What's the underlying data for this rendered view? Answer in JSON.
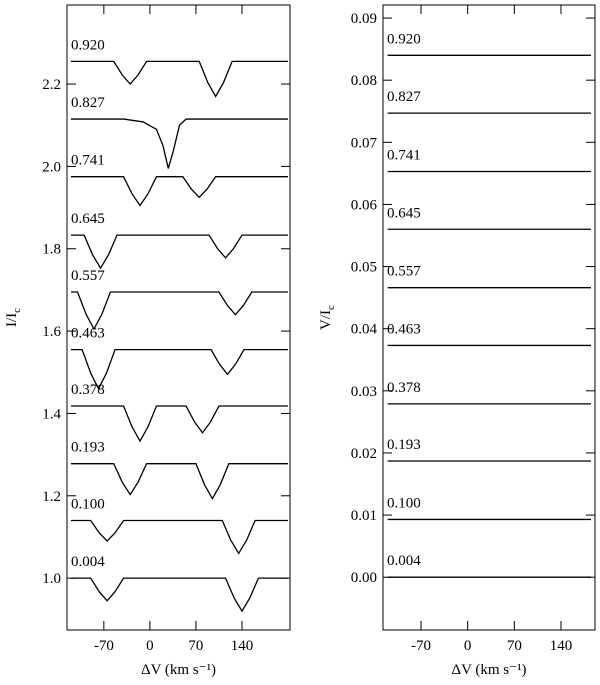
{
  "chart_data": [
    {
      "type": "line",
      "ylabel": {
        "main": "I/I",
        "sub": "c"
      },
      "xlabel": "ΔV (km s⁻¹)",
      "xlim": [
        -126,
        213
      ],
      "ylim": [
        0.874,
        2.392
      ],
      "xticks": [
        -70,
        0,
        70,
        140
      ],
      "yticks": [
        {
          "value": 1,
          "label": "1.0"
        },
        1.2,
        1.4,
        1.6,
        1.8,
        {
          "value": 2,
          "label": "2.0"
        },
        2.2
      ],
      "color": "#000000",
      "series": [
        {
          "name": "0.004",
          "x": [
            -120,
            -90,
            -77,
            -65,
            -53,
            -40,
            115,
            128,
            140,
            152,
            165,
            210
          ],
          "values": [
            1.0,
            1.0,
            0.967,
            0.945,
            0.967,
            1.0,
            1.0,
            0.952,
            0.92,
            0.952,
            1.0,
            1.0
          ]
        },
        {
          "name": "0.100",
          "x": [
            -120,
            -90,
            -77,
            -65,
            -53,
            -40,
            110,
            123,
            135,
            147,
            160,
            210
          ],
          "values": [
            1.14,
            1.14,
            1.11,
            1.09,
            1.11,
            1.14,
            1.14,
            1.092,
            1.06,
            1.092,
            1.14,
            1.14
          ]
        },
        {
          "name": "0.193",
          "x": [
            -120,
            -55,
            -42,
            -30,
            -18,
            -5,
            70,
            83,
            95,
            107,
            120,
            210
          ],
          "values": [
            1.278,
            1.278,
            1.233,
            1.203,
            1.233,
            1.278,
            1.278,
            1.227,
            1.193,
            1.227,
            1.278,
            1.278
          ]
        },
        {
          "name": "0.378",
          "x": [
            -120,
            -40,
            -27,
            -15,
            -3,
            10,
            55,
            68,
            80,
            92,
            105,
            210
          ],
          "values": [
            1.418,
            1.418,
            1.367,
            1.333,
            1.367,
            1.418,
            1.418,
            1.379,
            1.353,
            1.379,
            1.418,
            1.418
          ]
        },
        {
          "name": "0.463",
          "x": [
            -120,
            -103,
            -90,
            -78,
            -66,
            -53,
            93,
            106,
            118,
            130,
            143,
            210
          ],
          "values": [
            1.555,
            1.555,
            1.498,
            1.46,
            1.498,
            1.555,
            1.555,
            1.519,
            1.495,
            1.519,
            1.555,
            1.555
          ]
        },
        {
          "name": "0.557",
          "x": [
            -120,
            -110,
            -97,
            -85,
            -73,
            -60,
            105,
            118,
            130,
            142,
            155,
            210
          ],
          "values": [
            1.695,
            1.695,
            1.641,
            1.605,
            1.641,
            1.695,
            1.695,
            1.662,
            1.64,
            1.662,
            1.695,
            1.695
          ]
        },
        {
          "name": "0.645",
          "x": [
            -120,
            -100,
            -87,
            -75,
            -63,
            -50,
            90,
            103,
            115,
            127,
            140,
            210
          ],
          "values": [
            1.833,
            1.833,
            1.785,
            1.753,
            1.785,
            1.833,
            1.833,
            1.8,
            1.778,
            1.8,
            1.833,
            1.833
          ]
        },
        {
          "name": "0.741",
          "x": [
            -120,
            -40,
            -27,
            -15,
            -3,
            10,
            50,
            63,
            75,
            87,
            100,
            210
          ],
          "values": [
            1.975,
            1.975,
            1.933,
            1.905,
            1.933,
            1.975,
            1.975,
            1.945,
            1.925,
            1.945,
            1.975,
            1.975
          ]
        },
        {
          "name": "0.827",
          "x": [
            -120,
            -40,
            -10,
            10,
            20,
            28,
            36,
            45,
            55,
            210
          ],
          "values": [
            2.115,
            2.115,
            2.108,
            2.09,
            2.05,
            1.995,
            2.04,
            2.1,
            2.115,
            2.115
          ]
        },
        {
          "name": "0.920",
          "x": [
            -120,
            -55,
            -42,
            -30,
            -18,
            -5,
            75,
            88,
            100,
            112,
            125,
            210
          ],
          "values": [
            2.255,
            2.255,
            2.222,
            2.2,
            2.222,
            2.255,
            2.255,
            2.204,
            2.17,
            2.204,
            2.255,
            2.255
          ]
        }
      ]
    },
    {
      "type": "line",
      "ylabel": {
        "main": "V/I",
        "sub": "c"
      },
      "xlabel": "ΔV (km s⁻¹)",
      "xlim": [
        -127,
        191
      ],
      "ylim": [
        -0.0085,
        0.0921
      ],
      "xticks": [
        -70,
        0,
        70,
        140
      ],
      "yticks": [
        {
          "value": 0,
          "label": "0.00"
        },
        0.01,
        0.02,
        0.03,
        0.04,
        0.05,
        0.06,
        0.07,
        0.08,
        0.09
      ],
      "color": "#000000",
      "series": [
        {
          "name": "0.004",
          "x": [
            -120,
            185
          ],
          "values": [
            0,
            0
          ]
        },
        {
          "name": "0.100",
          "x": [
            -120,
            185
          ],
          "values": [
            0.0093,
            0.0093
          ]
        },
        {
          "name": "0.193",
          "x": [
            -120,
            185
          ],
          "values": [
            0.0187,
            0.0187
          ]
        },
        {
          "name": "0.378",
          "x": [
            -120,
            185
          ],
          "values": [
            0.0279,
            0.0279
          ]
        },
        {
          "name": "0.463",
          "x": [
            -120,
            185
          ],
          "values": [
            0.0373,
            0.0373
          ]
        },
        {
          "name": "0.557",
          "x": [
            -120,
            185
          ],
          "values": [
            0.0466,
            0.0466
          ]
        },
        {
          "name": "0.645",
          "x": [
            -120,
            185
          ],
          "values": [
            0.056,
            0.056
          ]
        },
        {
          "name": "0.741",
          "x": [
            -120,
            185
          ],
          "values": [
            0.0653,
            0.0653
          ]
        },
        {
          "name": "0.827",
          "x": [
            -120,
            185
          ],
          "values": [
            0.0747,
            0.0747
          ]
        },
        {
          "name": "0.920",
          "x": [
            -120,
            185
          ],
          "values": [
            0.084,
            0.084
          ]
        }
      ]
    }
  ]
}
